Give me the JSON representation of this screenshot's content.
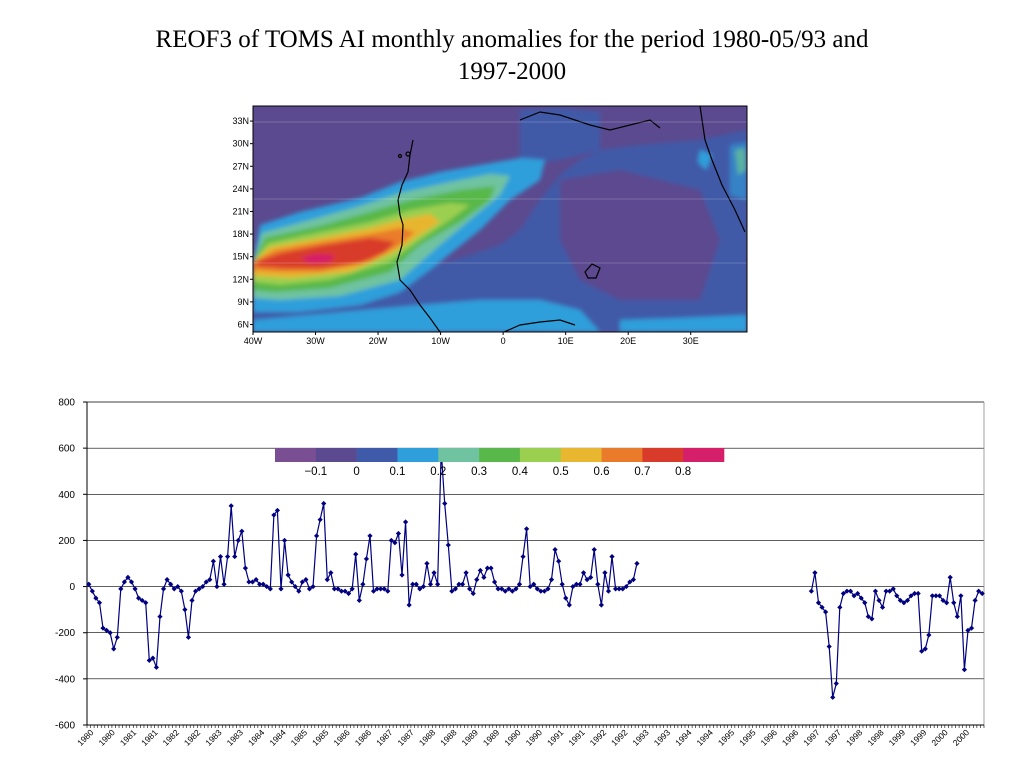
{
  "page": {
    "title_line1": "REOF3 of TOMS AI monthly anomalies for the period 1980-05/93 and",
    "title_line2": "1997-2000"
  },
  "map": {
    "lat_labels": [
      "33N",
      "30N",
      "27N",
      "24N",
      "21N",
      "18N",
      "15N",
      "12N",
      "9N",
      "6N"
    ],
    "lon_labels": [
      "40W",
      "30W",
      "20W",
      "10W",
      "0",
      "10E",
      "20E",
      "30E"
    ]
  },
  "colorbar": {
    "labels": [
      "−0.1",
      "0",
      "0.1",
      "0.2",
      "0.3",
      "0.4",
      "0.5",
      "0.6",
      "0.7",
      "0.8"
    ],
    "colors": [
      "#7a4e93",
      "#5b4a8f",
      "#3f5aa8",
      "#2f9fdb",
      "#6fc3a0",
      "#59b84a",
      "#9bcf4f",
      "#e8b62f",
      "#ea7b2a",
      "#d93b2b",
      "#d61f6a"
    ]
  },
  "chart_data": {
    "type": "line",
    "title": "",
    "xlabel": "",
    "ylabel": "",
    "ylim": [
      -600,
      800
    ],
    "yticks": [
      800,
      600,
      400,
      200,
      0,
      -200,
      -400,
      -600
    ],
    "x_tick_labels": [
      "1980",
      "1980",
      "1981",
      "1981",
      "1982",
      "1982",
      "1983",
      "1983",
      "1984",
      "1984",
      "1985",
      "1985",
      "1986",
      "1986",
      "1987",
      "1987",
      "1988",
      "1988",
      "1989",
      "1989",
      "1990",
      "1990",
      "1991",
      "1991",
      "1992",
      "1992",
      "1993",
      "1993",
      "1994",
      "1994",
      "1995",
      "1995",
      "1996",
      "1996",
      "1997",
      "1997",
      "1998",
      "1998",
      "1999",
      "1999",
      "2000",
      "2000"
    ],
    "grid": true,
    "marker": "diamond",
    "color": "#000080",
    "series": [
      {
        "values": [
          10,
          -20,
          -50,
          -70,
          -180,
          -190,
          -200,
          -270,
          -220,
          -10,
          20,
          40,
          20,
          -10,
          -50,
          -60,
          -70,
          -320,
          -310,
          -350,
          -130,
          -10,
          30,
          10,
          -10,
          0,
          -20,
          -100,
          -220,
          -60,
          -20,
          -10,
          0,
          20,
          30,
          110,
          0,
          130,
          10,
          130,
          350,
          130,
          200,
          240,
          80,
          20,
          20,
          30,
          10,
          10,
          0,
          -10,
          310,
          330,
          -10,
          200,
          50,
          20,
          0,
          -20,
          20,
          30,
          -10,
          0,
          220,
          290,
          360,
          30,
          60,
          -10,
          -10,
          -20,
          -20,
          -30,
          -10,
          140,
          -60,
          10,
          120,
          220,
          -20,
          -10,
          -10,
          -10,
          -20,
          200,
          190,
          230,
          50,
          280,
          -80,
          10,
          10,
          -10,
          0,
          100,
          10,
          60,
          10,
          590,
          360,
          180,
          -20,
          -10,
          10,
          10,
          60,
          -10,
          -30,
          30,
          70,
          40,
          80,
          80,
          20,
          -10,
          -10,
          -20,
          -10,
          -20,
          -10,
          10,
          130,
          250,
          0,
          10,
          -10,
          -20,
          -20,
          -10,
          30,
          160,
          110,
          10,
          -50,
          -80,
          0,
          10,
          10,
          60,
          30,
          40,
          160,
          10,
          -80,
          60,
          -20,
          130,
          -10,
          -10,
          -10,
          0,
          20,
          30,
          100,
          null,
          null,
          null,
          null,
          null,
          null,
          null,
          null,
          null,
          null,
          null,
          null,
          null,
          null,
          null,
          null,
          null,
          null,
          null,
          null,
          null,
          null,
          null,
          null,
          null,
          null,
          null,
          null,
          null,
          null,
          null,
          null,
          null,
          null,
          null,
          null,
          null,
          null,
          null,
          null,
          null,
          null,
          null,
          null,
          null,
          null,
          null,
          null,
          -20,
          60,
          -70,
          -90,
          -110,
          -260,
          -480,
          -420,
          -90,
          -30,
          -20,
          -20,
          -40,
          -30,
          -50,
          -70,
          -130,
          -140,
          -20,
          -60,
          -90,
          -20,
          -20,
          -10,
          -40,
          -60,
          -70,
          -60,
          -40,
          -30,
          -30,
          -280,
          -270,
          -210,
          -40,
          -40,
          -40,
          -60,
          -70,
          40,
          -70,
          -130,
          -40,
          -360,
          -190,
          -180,
          -60,
          -20,
          -30
        ]
      }
    ]
  }
}
